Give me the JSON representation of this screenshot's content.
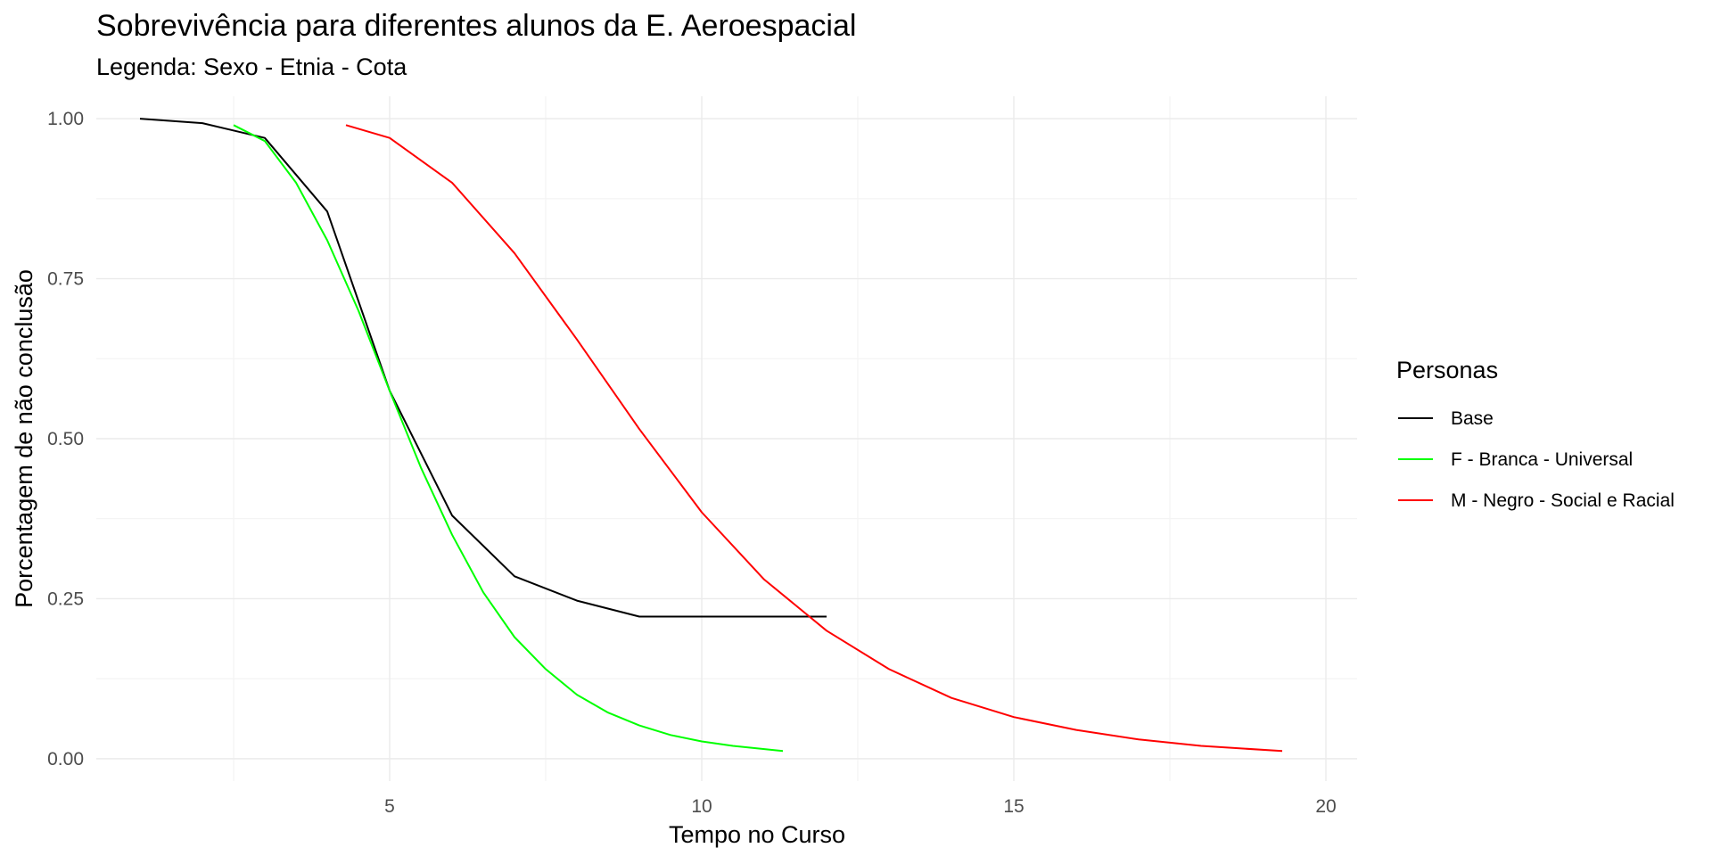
{
  "chart_data": {
    "type": "line",
    "title": "Sobrevivência para diferentes alunos da E. Aeroespacial",
    "subtitle": "Legenda: Sexo - Etnia - Cota",
    "xlabel": "Tempo no Curso",
    "ylabel": "Porcentagem de não conclusão",
    "xlim": [
      0.3,
      20.5
    ],
    "ylim": [
      -0.035,
      1.035
    ],
    "x_ticks": [
      5,
      10,
      15,
      20
    ],
    "x_tick_labels": [
      "5",
      "10",
      "15",
      "20"
    ],
    "y_ticks": [
      0,
      0.25,
      0.5,
      0.75,
      1.0
    ],
    "y_tick_labels": [
      "0.00",
      "0.25",
      "0.50",
      "0.75",
      "1.00"
    ],
    "x_minor": [
      2.5,
      7.5,
      12.5,
      17.5
    ],
    "y_minor": [
      0.125,
      0.375,
      0.625,
      0.875
    ],
    "grid": true,
    "legend": {
      "title": "Personas",
      "placement": "right"
    },
    "series": [
      {
        "name": "Base",
        "color": "#000000",
        "x": [
          1,
          2,
          3,
          4,
          5,
          6,
          7,
          8,
          9,
          10,
          11,
          12
        ],
        "y": [
          1.0,
          0.993,
          0.97,
          0.855,
          0.575,
          0.38,
          0.285,
          0.247,
          0.222,
          0.222,
          0.222,
          0.222
        ]
      },
      {
        "name": "F - Branca - Universal",
        "color": "#00ff00",
        "x": [
          2.5,
          3.0,
          3.5,
          4.0,
          4.5,
          5.0,
          5.5,
          6.0,
          6.5,
          7.0,
          7.5,
          8.0,
          8.5,
          9.0,
          9.5,
          10.0,
          10.5,
          11.3
        ],
        "y": [
          0.99,
          0.965,
          0.9,
          0.81,
          0.7,
          0.575,
          0.455,
          0.35,
          0.26,
          0.19,
          0.14,
          0.1,
          0.072,
          0.052,
          0.037,
          0.027,
          0.02,
          0.012
        ]
      },
      {
        "name": "M - Negro - Social e Racial",
        "color": "#ff0000",
        "x": [
          4.3,
          5.0,
          6.0,
          7.0,
          8.0,
          9.0,
          10.0,
          11.0,
          12.0,
          13.0,
          14.0,
          15.0,
          16.0,
          17.0,
          18.0,
          19.3
        ],
        "y": [
          0.99,
          0.97,
          0.9,
          0.79,
          0.655,
          0.515,
          0.385,
          0.28,
          0.2,
          0.14,
          0.095,
          0.065,
          0.045,
          0.03,
          0.02,
          0.012
        ]
      }
    ]
  }
}
